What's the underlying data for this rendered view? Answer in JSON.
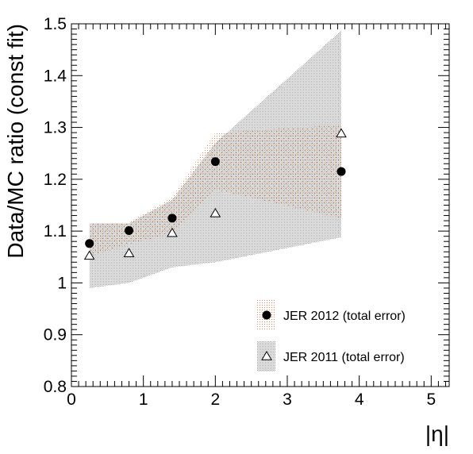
{
  "chart_data": {
    "type": "scatter",
    "xlabel": "|η|",
    "ylabel": "Data/MC ratio (const fit)",
    "xlim": [
      0,
      5.25
    ],
    "ylim": [
      0.8,
      1.5
    ],
    "x_ticks": [
      "0",
      "1",
      "2",
      "3",
      "4",
      "5"
    ],
    "y_ticks": [
      "0.8",
      "0.9",
      "1",
      "1.1",
      "1.2",
      "1.3",
      "1.4",
      "1.5"
    ],
    "grid": false,
    "legend_position": "bottom-right",
    "series": [
      {
        "name": "JER 2012 (total error)",
        "marker": "filled-circle",
        "band_color": "#e8a07a",
        "points": [
          {
            "x": 0.25,
            "y": 1.076
          },
          {
            "x": 0.8,
            "y": 1.101
          },
          {
            "x": 1.4,
            "y": 1.125
          },
          {
            "x": 2.0,
            "y": 1.234
          },
          {
            "x": 3.75,
            "y": 1.215
          }
        ],
        "band": [
          {
            "x": 0.25,
            "low": 1.05,
            "high": 1.115
          },
          {
            "x": 0.8,
            "low": 1.075,
            "high": 1.117
          },
          {
            "x": 1.4,
            "low": 1.095,
            "high": 1.165
          },
          {
            "x": 2.0,
            "low": 1.18,
            "high": 1.29
          },
          {
            "x": 3.75,
            "low": 1.125,
            "high": 1.305
          }
        ]
      },
      {
        "name": "JER 2011 (total error)",
        "marker": "open-triangle",
        "band_color": "#b4b4b4",
        "points": [
          {
            "x": 0.25,
            "y": 1.052
          },
          {
            "x": 0.8,
            "y": 1.057
          },
          {
            "x": 1.4,
            "y": 1.096
          },
          {
            "x": 2.0,
            "y": 1.134
          },
          {
            "x": 3.75,
            "y": 1.288
          }
        ],
        "band": [
          {
            "x": 0.25,
            "low": 0.99,
            "high": 1.115
          },
          {
            "x": 0.8,
            "low": 1.0,
            "high": 1.115
          },
          {
            "x": 1.4,
            "low": 1.03,
            "high": 1.16
          },
          {
            "x": 2.0,
            "low": 1.04,
            "high": 1.27
          },
          {
            "x": 3.75,
            "low": 1.088,
            "high": 1.487
          }
        ]
      }
    ]
  }
}
